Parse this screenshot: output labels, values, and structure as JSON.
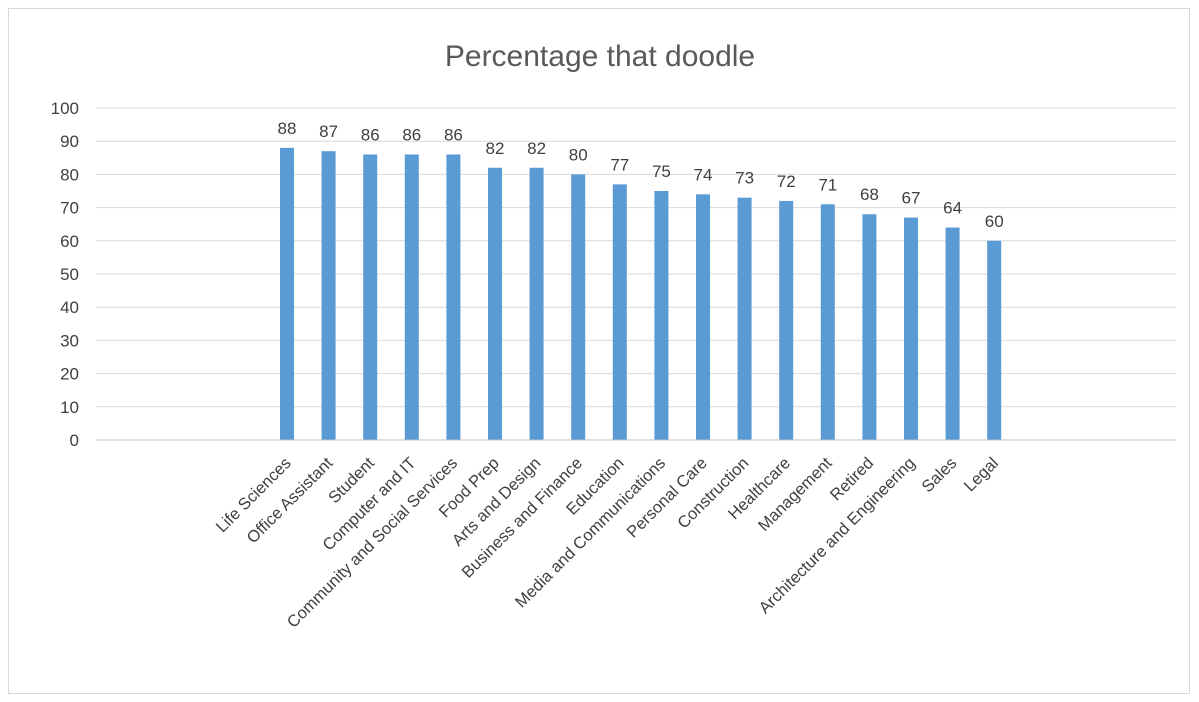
{
  "chart_data": {
    "type": "bar",
    "title": "Percentage that doodle",
    "xlabel": "",
    "ylabel": "",
    "ylim": [
      0,
      100
    ],
    "yticks": [
      0,
      10,
      20,
      30,
      40,
      50,
      60,
      70,
      80,
      90,
      100
    ],
    "grid": true,
    "legend": "none",
    "bar_color": "#5b9bd5",
    "categories": [
      "Life Sciences",
      "Office Assistant",
      "Student",
      "Computer and IT",
      "Community and Social Services",
      "Food Prep",
      "Arts and Design",
      "Business and Finance",
      "Education",
      "Media and Communications",
      "Personal Care",
      "Construction",
      "Healthcare",
      "Management",
      "Retired",
      "Architecture and Engineering",
      "Sales",
      "Legal"
    ],
    "values": [
      88,
      87,
      86,
      86,
      86,
      82,
      82,
      80,
      77,
      75,
      74,
      73,
      72,
      71,
      68,
      67,
      64,
      60
    ]
  }
}
